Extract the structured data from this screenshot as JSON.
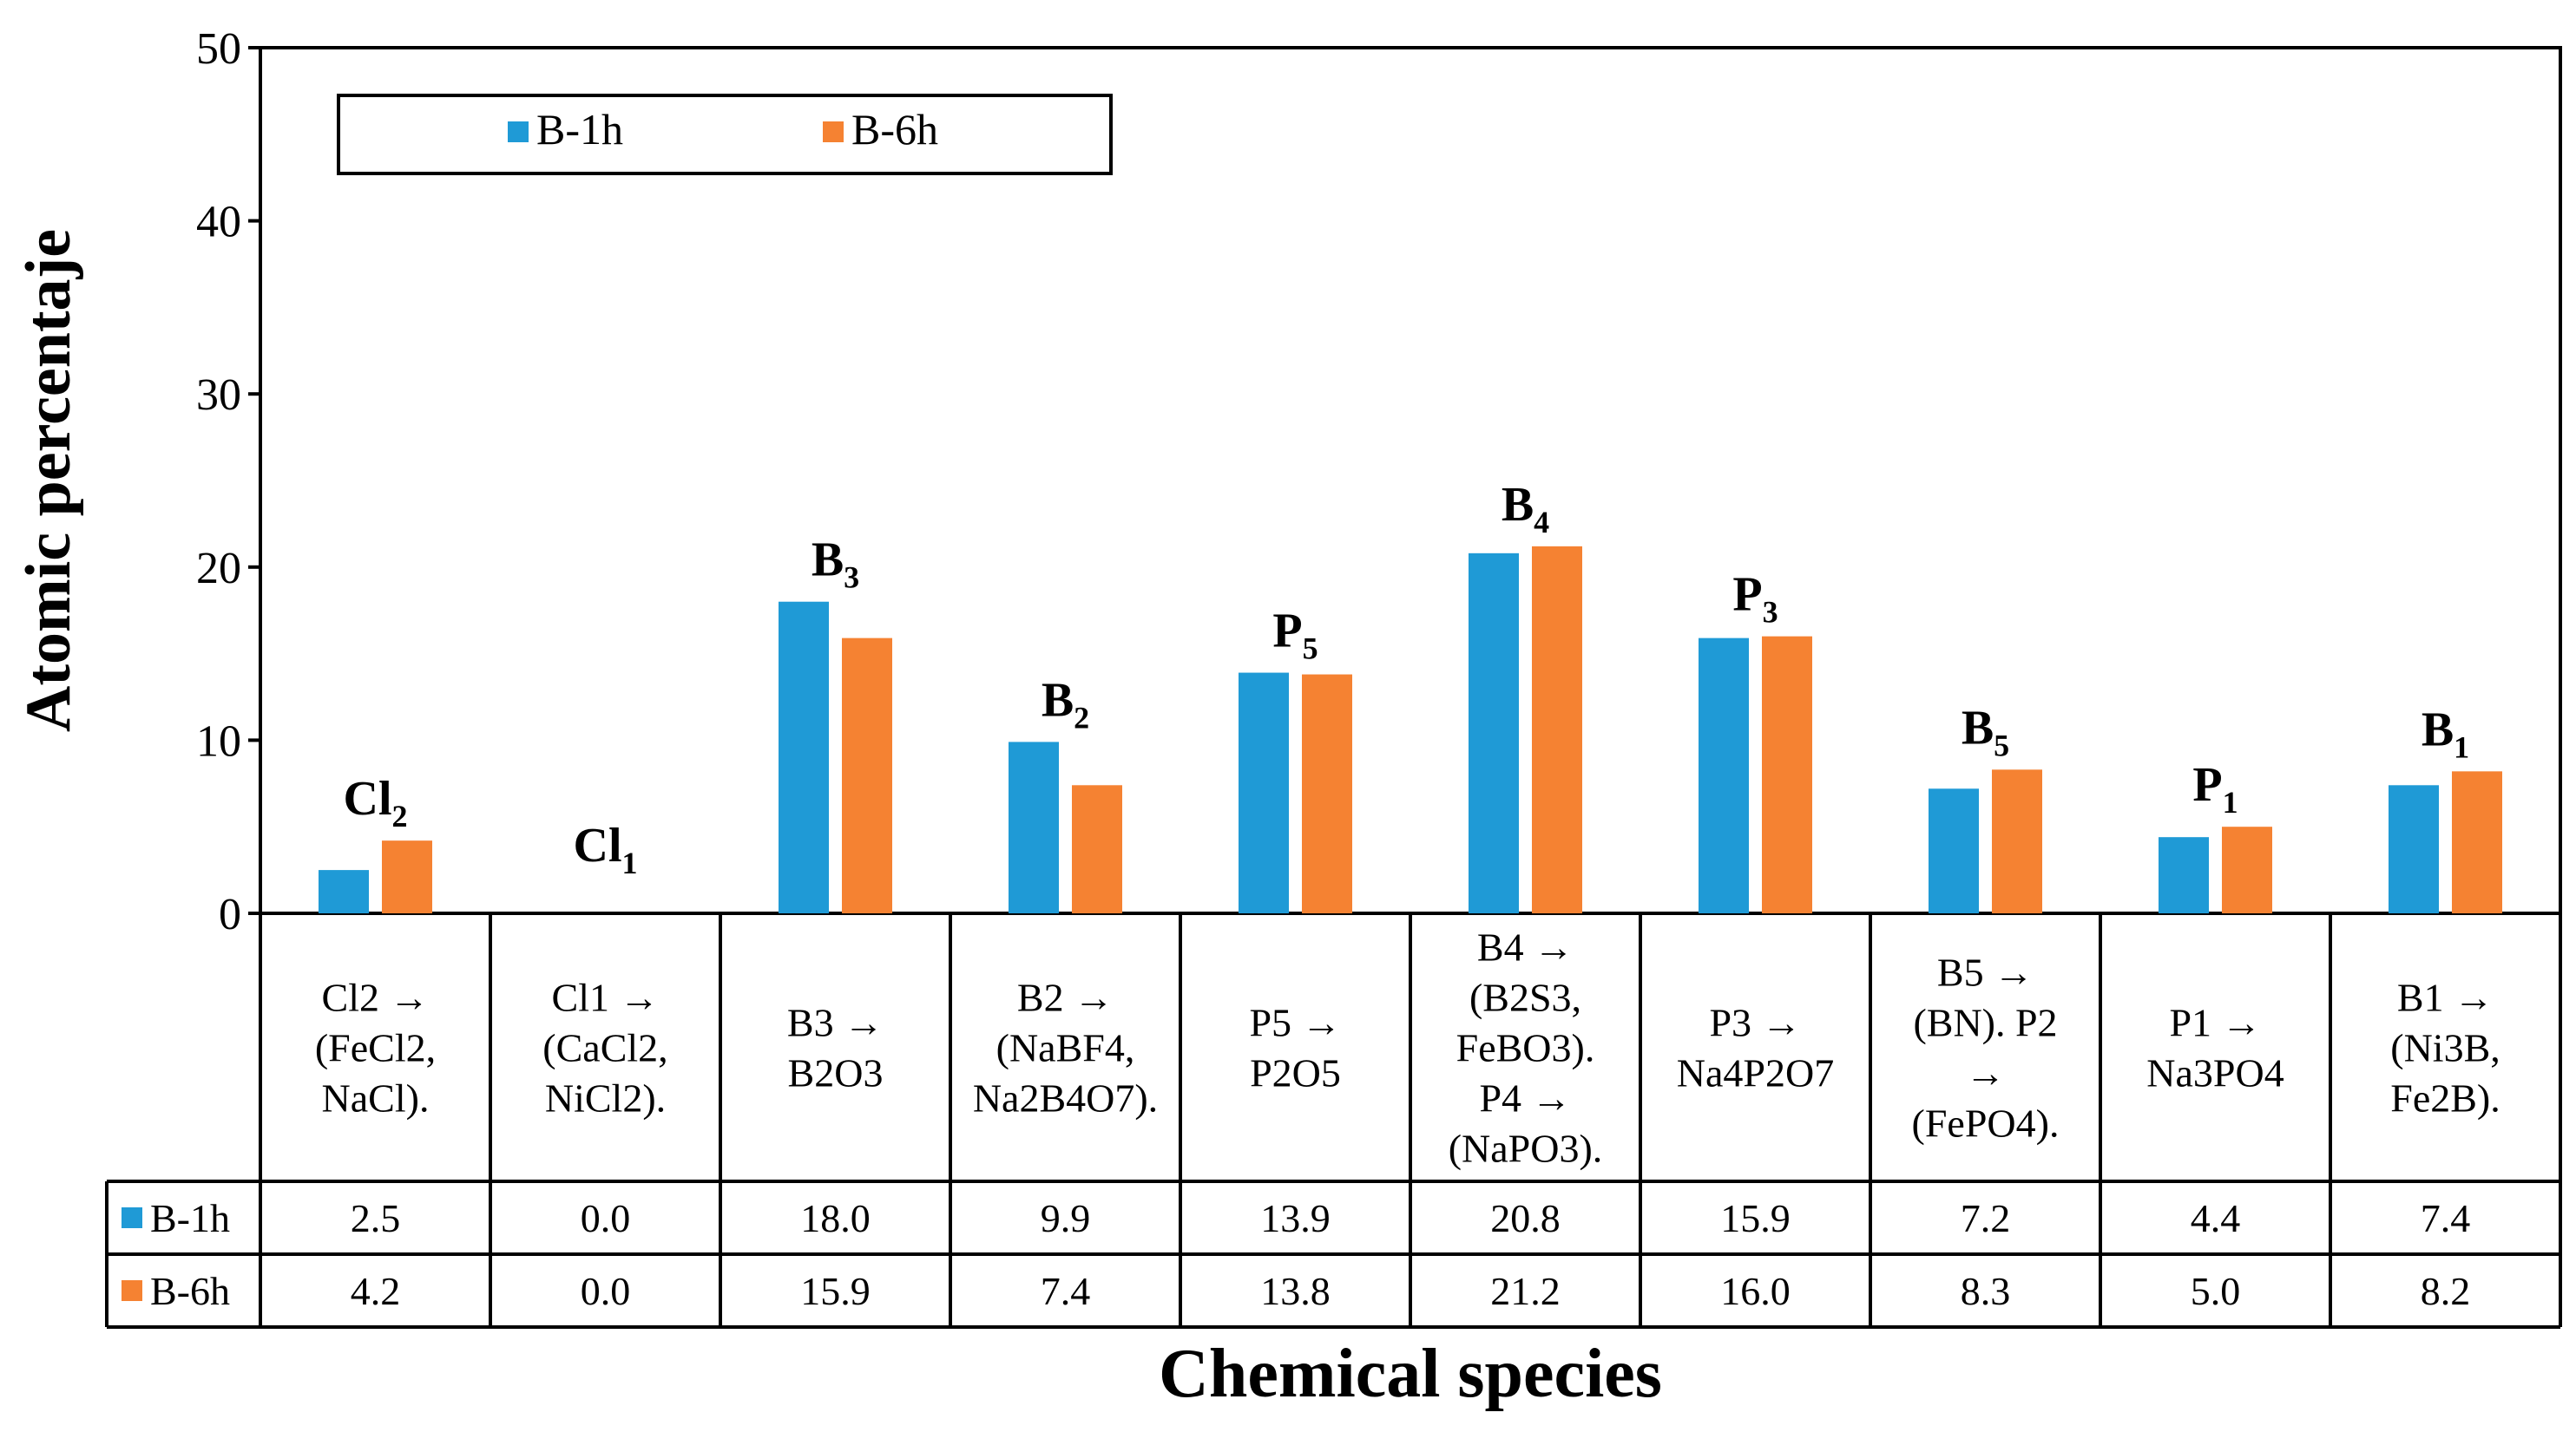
{
  "colors": {
    "b1h": "#1F9AD6",
    "b6h": "#F58232",
    "frame": "#000000",
    "background": "#FFFFFF"
  },
  "chart_data": {
    "type": "bar",
    "title": "",
    "xlabel": "Chemical species",
    "ylabel": "Atomic percentaje",
    "ylim": [
      0,
      50
    ],
    "yticks": [
      0,
      10,
      20,
      30,
      40,
      50
    ],
    "grid": false,
    "legend_position": "top-left",
    "categories": [
      {
        "label": "Cl",
        "sub": "2",
        "table_text": [
          "Cl2 →",
          "(FeCl2,",
          "NaCl)."
        ]
      },
      {
        "label": "Cl",
        "sub": "1",
        "table_text": [
          "Cl1 →",
          "(CaCl2,",
          "NiCl2)."
        ]
      },
      {
        "label": "B",
        "sub": "3",
        "table_text": [
          "B3 →",
          "B2O3"
        ]
      },
      {
        "label": "B",
        "sub": "2",
        "table_text": [
          "B2 →",
          "(NaBF4,",
          "Na2B4O7)."
        ]
      },
      {
        "label": "P",
        "sub": "5",
        "table_text": [
          "P5 →",
          "P2O5"
        ]
      },
      {
        "label": "B",
        "sub": "4",
        "table_text": [
          "B4 →",
          "(B2S3,",
          "FeBO3).",
          "P4 →",
          "(NaPO3)."
        ]
      },
      {
        "label": "P",
        "sub": "3",
        "table_text": [
          "P3 →",
          "Na4P2O7"
        ]
      },
      {
        "label": "B",
        "sub": "5",
        "table_text": [
          "B5 →",
          "(BN). P2",
          "→",
          "(FePO4)."
        ]
      },
      {
        "label": "P",
        "sub": "1",
        "table_text": [
          "P1 →",
          "Na3PO4"
        ]
      },
      {
        "label": "B",
        "sub": "1",
        "table_text": [
          "B1 →",
          "(Ni3B,",
          "Fe2B)."
        ]
      }
    ],
    "series": [
      {
        "name": "B-1h",
        "color": "#1F9AD6",
        "values": [
          2.5,
          0.0,
          18.0,
          9.9,
          13.9,
          20.8,
          15.9,
          7.2,
          4.4,
          7.4
        ],
        "labels": [
          "2.5",
          "0.0",
          "18.0",
          "9.9",
          "13.9",
          "20.8",
          "15.9",
          "7.2",
          "4.4",
          "7.4"
        ]
      },
      {
        "name": "B-6h",
        "color": "#F58232",
        "values": [
          4.2,
          0.0,
          15.9,
          7.4,
          13.8,
          21.2,
          16.0,
          8.3,
          5.0,
          8.2
        ],
        "labels": [
          "4.2",
          "0.0",
          "15.9",
          "7.4",
          "13.8",
          "21.2",
          "16.0",
          "8.3",
          "5.0",
          "8.2"
        ]
      }
    ]
  }
}
